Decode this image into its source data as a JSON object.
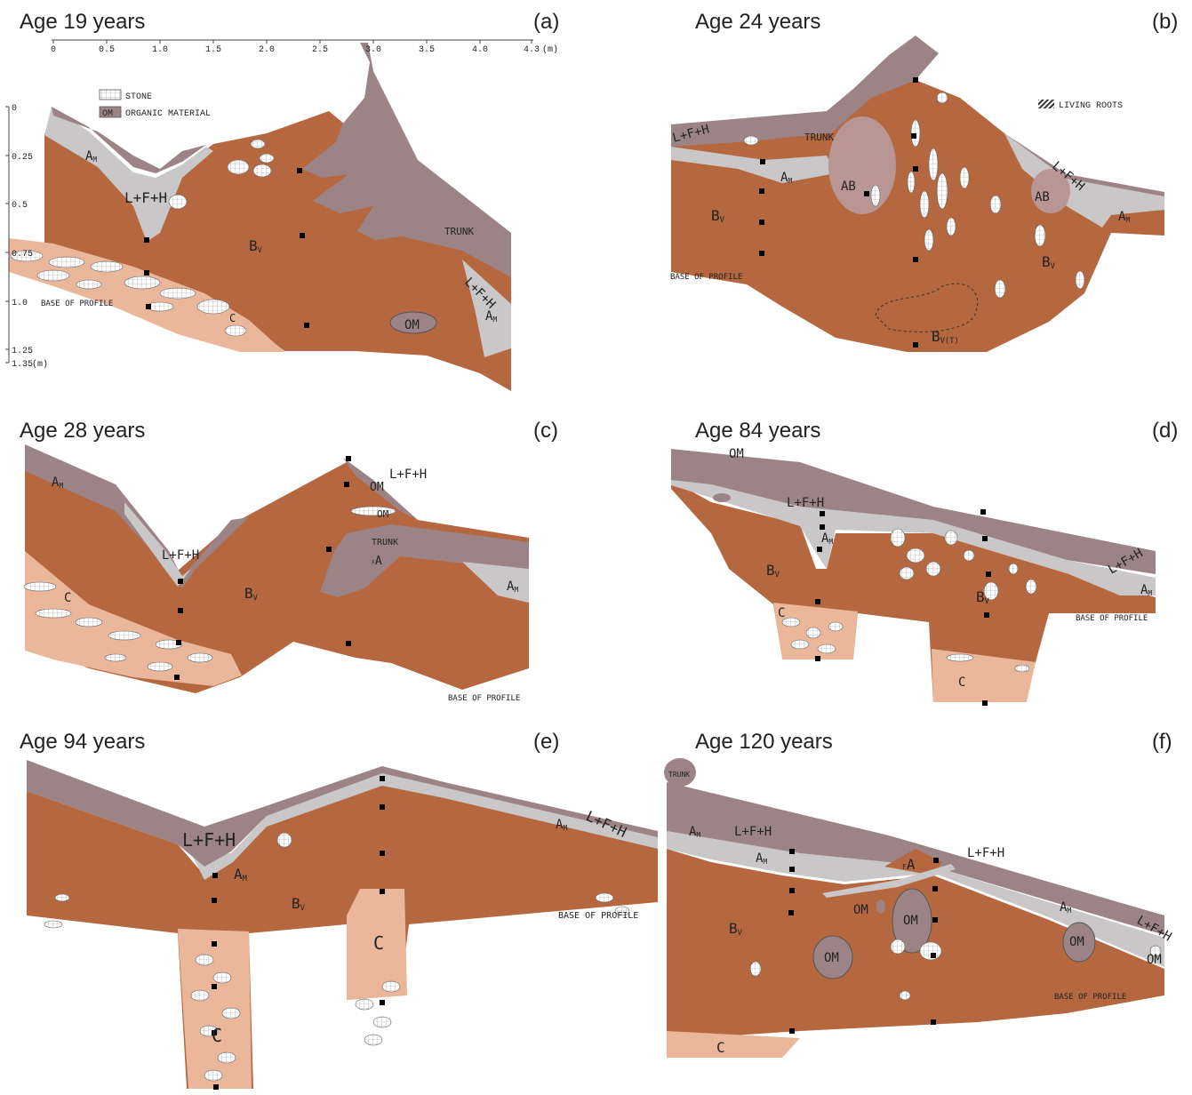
{
  "panels": [
    {
      "title": "Age 19 years",
      "letter": "(a)",
      "labels": [
        {
          "text": "A",
          "sub": "M"
        },
        {
          "text": "L+F+H"
        },
        {
          "text": "B",
          "sub": "V"
        },
        {
          "text": "TRUNK"
        },
        {
          "text": "L+F+H"
        },
        {
          "text": "A",
          "sub": "M"
        },
        {
          "text": "C"
        },
        {
          "text": "OM"
        },
        {
          "text": "BASE OF PROFILE"
        }
      ]
    },
    {
      "title": "Age 24 years",
      "letter": "(b)",
      "labels": [
        {
          "text": "L+F+H"
        },
        {
          "text": "TRUNK"
        },
        {
          "text": "A",
          "sub": "M"
        },
        {
          "text": "AB"
        },
        {
          "text": "AB"
        },
        {
          "text": "L+F+H"
        },
        {
          "text": "A",
          "sub": "M"
        },
        {
          "text": "B",
          "sub": "V"
        },
        {
          "text": "B",
          "sub": "V"
        },
        {
          "text": "BASE OF PROFILE"
        },
        {
          "text": "B",
          "sub": "V(T)"
        }
      ]
    },
    {
      "title": "Age 28 years",
      "letter": "(c)",
      "labels": [
        {
          "text": "A",
          "sub": "M"
        },
        {
          "text": "L+F+H"
        },
        {
          "text": "B",
          "sub": "V"
        },
        {
          "text": "C"
        },
        {
          "text": "L+F+H"
        },
        {
          "text": "OM"
        },
        {
          "text": "OM"
        },
        {
          "text": "TRUNK"
        },
        {
          "pre": "F",
          "text": "A"
        },
        {
          "text": "A",
          "sub": "M"
        },
        {
          "text": "BASE OF PROFILE"
        }
      ]
    },
    {
      "title": "Age 84 years",
      "letter": "(d)",
      "labels": [
        {
          "text": "OM"
        },
        {
          "text": "L+F+H"
        },
        {
          "text": "A",
          "sub": "M"
        },
        {
          "text": "B",
          "sub": "V"
        },
        {
          "text": "C"
        },
        {
          "text": "B",
          "sub": "V"
        },
        {
          "text": "BASE OF PROFILE"
        },
        {
          "text": "L+F+H"
        },
        {
          "text": "A",
          "sub": "M"
        },
        {
          "text": "C"
        }
      ]
    },
    {
      "title": "Age 94 years",
      "letter": "(e)",
      "labels": [
        {
          "text": "L+F+H"
        },
        {
          "text": "A",
          "sub": "M"
        },
        {
          "text": "B",
          "sub": "V"
        },
        {
          "text": "C"
        },
        {
          "text": "C"
        },
        {
          "text": "A",
          "sub": "M"
        },
        {
          "text": "L+F+H"
        },
        {
          "text": "BASE OF PROFILE"
        }
      ]
    },
    {
      "title": "Age 120 years",
      "letter": "(f)",
      "labels": [
        {
          "text": "TRUNK"
        },
        {
          "text": "A",
          "sub": "M"
        },
        {
          "text": "L+F+H"
        },
        {
          "text": "A",
          "sub": "M"
        },
        {
          "pre": "F",
          "text": "A"
        },
        {
          "text": "L+F+H"
        },
        {
          "text": "OM"
        },
        {
          "text": "OM"
        },
        {
          "text": "B",
          "sub": "V"
        },
        {
          "text": "OM"
        },
        {
          "text": "OM"
        },
        {
          "text": "A",
          "sub": "M"
        },
        {
          "text": "L+F+H"
        },
        {
          "text": "OM"
        },
        {
          "text": "BASE OF PROFILE"
        },
        {
          "text": "C"
        }
      ]
    }
  ],
  "scale": {
    "x_ticks": [
      "0",
      "0.5",
      "1.0",
      "1.5",
      "2.0",
      "2.5",
      "3.0",
      "3.5",
      "4.0",
      "4.3"
    ],
    "x_unit": "(m)",
    "y_ticks": [
      "0",
      "0.25",
      "0.5",
      "0.75",
      "1.0",
      "1.25",
      "1.35"
    ],
    "y_unit": "(m)"
  },
  "legend": {
    "stone": "STONE",
    "om_box": "OM",
    "om": "ORGANIC MATERIAL",
    "roots": "LIVING ROOTS"
  }
}
